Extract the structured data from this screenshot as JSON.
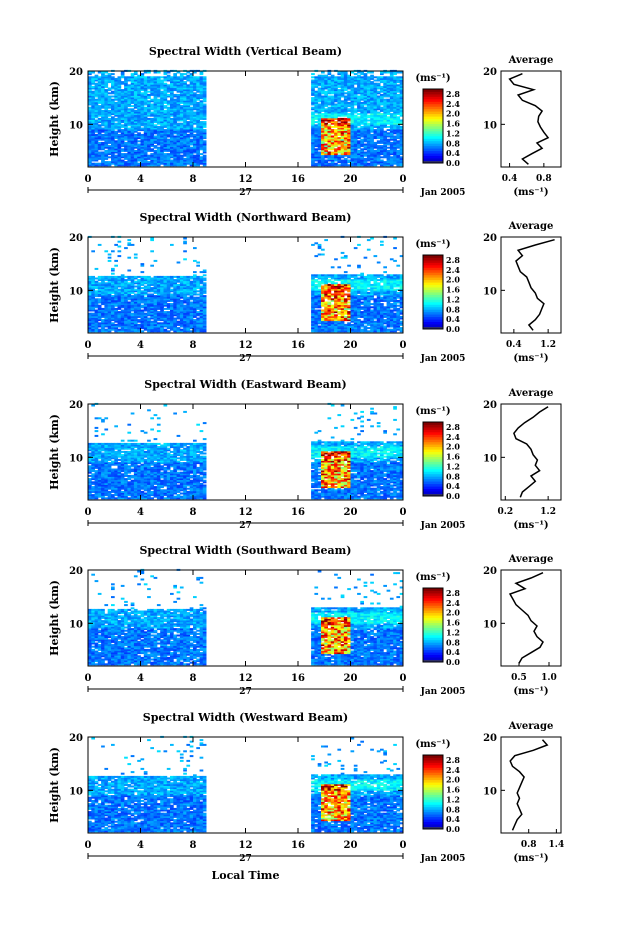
{
  "figure": {
    "xlabel": "Local Time",
    "date_label": "Jan 2005",
    "day_label": "27",
    "cbar_unit": "(ms⁻¹)",
    "avg_title": "Average",
    "avg_unit": "(ms⁻¹)"
  },
  "chart_data": [
    {
      "type": "heatmap",
      "title": "Spectral Width (Vertical Beam)",
      "ylabel": "Height (km)",
      "xticks": [
        "0",
        "4",
        "8",
        "12",
        "16",
        "20",
        "0"
      ],
      "xlim": [
        0,
        24
      ],
      "ylim": [
        2,
        20
      ],
      "yticks": [
        "20",
        "10"
      ],
      "data_gap_hours": [
        9,
        17
      ],
      "colorbar": {
        "ticks": [
          "2.8",
          "2.4",
          "2.0",
          "1.6",
          "1.2",
          "0.8",
          "0.4",
          "0.0"
        ],
        "range": [
          0.0,
          3.0
        ]
      },
      "average": {
        "xticks": [
          "0.4",
          "0.8"
        ],
        "xlim": [
          0.3,
          1.0
        ],
        "profile": [
          [
            2.5,
            0.62
          ],
          [
            3.5,
            0.55
          ],
          [
            4.5,
            0.66
          ],
          [
            5.5,
            0.78
          ],
          [
            6.5,
            0.72
          ],
          [
            7.5,
            0.85
          ],
          [
            8.5,
            0.8
          ],
          [
            9.5,
            0.76
          ],
          [
            10.5,
            0.73
          ],
          [
            11.5,
            0.74
          ],
          [
            12.5,
            0.78
          ],
          [
            13.5,
            0.7
          ],
          [
            14.5,
            0.55
          ],
          [
            15.5,
            0.5
          ],
          [
            16.5,
            0.68
          ],
          [
            17.5,
            0.45
          ],
          [
            18.5,
            0.4
          ],
          [
            19.5,
            0.55
          ]
        ]
      }
    },
    {
      "type": "heatmap",
      "title": "Spectral Width (Northward Beam)",
      "ylabel": "Height (km)",
      "xticks": [
        "0",
        "4",
        "8",
        "12",
        "16",
        "20",
        "0"
      ],
      "xlim": [
        0,
        24
      ],
      "ylim": [
        2,
        20
      ],
      "yticks": [
        "20",
        "10"
      ],
      "data_gap_hours": [
        9,
        17
      ],
      "colorbar": {
        "ticks": [
          "2.8",
          "2.4",
          "2.0",
          "1.6",
          "1.2",
          "0.8",
          "0.4",
          "0.0"
        ],
        "range": [
          0.0,
          3.0
        ]
      },
      "average": {
        "xticks": [
          "0.4",
          "1.2"
        ],
        "xlim": [
          0.1,
          1.5
        ],
        "profile": [
          [
            2.5,
            0.85
          ],
          [
            3.5,
            0.75
          ],
          [
            4.5,
            0.9
          ],
          [
            5.5,
            1.0
          ],
          [
            6.5,
            1.05
          ],
          [
            7.5,
            1.1
          ],
          [
            8.5,
            0.95
          ],
          [
            9.5,
            0.9
          ],
          [
            10.5,
            0.8
          ],
          [
            11.5,
            0.75
          ],
          [
            12.5,
            0.7
          ],
          [
            13.5,
            0.55
          ],
          [
            14.5,
            0.5
          ],
          [
            15.5,
            0.45
          ],
          [
            16.5,
            0.6
          ],
          [
            17.5,
            0.5
          ],
          [
            18.5,
            0.9
          ],
          [
            19.5,
            1.35
          ]
        ]
      }
    },
    {
      "type": "heatmap",
      "title": "Spectral Width (Eastward Beam)",
      "ylabel": "Height (km)",
      "xticks": [
        "0",
        "4",
        "8",
        "12",
        "16",
        "20",
        "0"
      ],
      "xlim": [
        0,
        24
      ],
      "ylim": [
        2,
        20
      ],
      "yticks": [
        "20",
        "10"
      ],
      "data_gap_hours": [
        9,
        17
      ],
      "colorbar": {
        "ticks": [
          "2.8",
          "2.4",
          "2.0",
          "1.6",
          "1.2",
          "0.8",
          "0.4",
          "0.0"
        ],
        "range": [
          0.0,
          3.0
        ]
      },
      "average": {
        "xticks": [
          "0.2",
          "1.2"
        ],
        "xlim": [
          0.1,
          1.5
        ],
        "profile": [
          [
            2.5,
            0.55
          ],
          [
            3.5,
            0.6
          ],
          [
            4.5,
            0.75
          ],
          [
            5.5,
            0.9
          ],
          [
            6.5,
            0.8
          ],
          [
            7.5,
            1.0
          ],
          [
            8.5,
            0.9
          ],
          [
            9.5,
            0.95
          ],
          [
            10.5,
            0.85
          ],
          [
            11.5,
            0.8
          ],
          [
            12.5,
            0.7
          ],
          [
            13.5,
            0.45
          ],
          [
            14.5,
            0.4
          ],
          [
            15.5,
            0.5
          ],
          [
            16.5,
            0.65
          ],
          [
            17.5,
            0.85
          ],
          [
            18.5,
            1.0
          ],
          [
            19.5,
            1.2
          ]
        ]
      }
    },
    {
      "type": "heatmap",
      "title": "Spectral Width (Southward Beam)",
      "ylabel": "Height (km)",
      "xticks": [
        "0",
        "4",
        "8",
        "12",
        "16",
        "20",
        "0"
      ],
      "xlim": [
        0,
        24
      ],
      "ylim": [
        2,
        20
      ],
      "yticks": [
        "20",
        "10"
      ],
      "data_gap_hours": [
        9,
        17
      ],
      "colorbar": {
        "ticks": [
          "2.8",
          "2.4",
          "2.0",
          "1.6",
          "1.2",
          "0.8",
          "0.4",
          "0.0"
        ],
        "range": [
          0.0,
          3.0
        ]
      },
      "average": {
        "xticks": [
          "0.5",
          "1.0"
        ],
        "xlim": [
          0.2,
          1.2
        ],
        "profile": [
          [
            2.5,
            0.5
          ],
          [
            3.5,
            0.55
          ],
          [
            4.5,
            0.7
          ],
          [
            5.5,
            0.85
          ],
          [
            6.5,
            0.9
          ],
          [
            7.5,
            0.8
          ],
          [
            8.5,
            0.75
          ],
          [
            9.5,
            0.8
          ],
          [
            10.5,
            0.7
          ],
          [
            11.5,
            0.65
          ],
          [
            12.5,
            0.55
          ],
          [
            13.5,
            0.45
          ],
          [
            14.5,
            0.4
          ],
          [
            15.5,
            0.35
          ],
          [
            16.5,
            0.6
          ],
          [
            17.5,
            0.45
          ],
          [
            18.5,
            0.7
          ],
          [
            19.5,
            0.9
          ]
        ]
      }
    },
    {
      "type": "heatmap",
      "title": "Spectral Width (Westward Beam)",
      "ylabel": "Height (km)",
      "xticks": [
        "0",
        "4",
        "8",
        "12",
        "16",
        "20",
        "0"
      ],
      "xlim": [
        0,
        24
      ],
      "ylim": [
        2,
        20
      ],
      "yticks": [
        "20",
        "10"
      ],
      "data_gap_hours": [
        9,
        17
      ],
      "colorbar": {
        "ticks": [
          "2.8",
          "2.4",
          "2.0",
          "1.6",
          "1.2",
          "0.8",
          "0.4",
          "0.0"
        ],
        "range": [
          0.0,
          3.0
        ]
      },
      "average": {
        "xticks": [
          "0.8",
          "1.4"
        ],
        "xlim": [
          0.2,
          1.5
        ],
        "profile": [
          [
            2.5,
            0.45
          ],
          [
            3.5,
            0.5
          ],
          [
            4.5,
            0.55
          ],
          [
            5.5,
            0.65
          ],
          [
            6.5,
            0.6
          ],
          [
            7.5,
            0.55
          ],
          [
            8.5,
            0.6
          ],
          [
            9.5,
            0.55
          ],
          [
            10.5,
            0.6
          ],
          [
            11.5,
            0.65
          ],
          [
            12.5,
            0.7
          ],
          [
            13.5,
            0.6
          ],
          [
            14.5,
            0.45
          ],
          [
            15.5,
            0.4
          ],
          [
            16.5,
            0.5
          ],
          [
            17.5,
            0.9
          ],
          [
            18.5,
            1.2
          ],
          [
            19.5,
            1.1
          ]
        ]
      }
    }
  ]
}
